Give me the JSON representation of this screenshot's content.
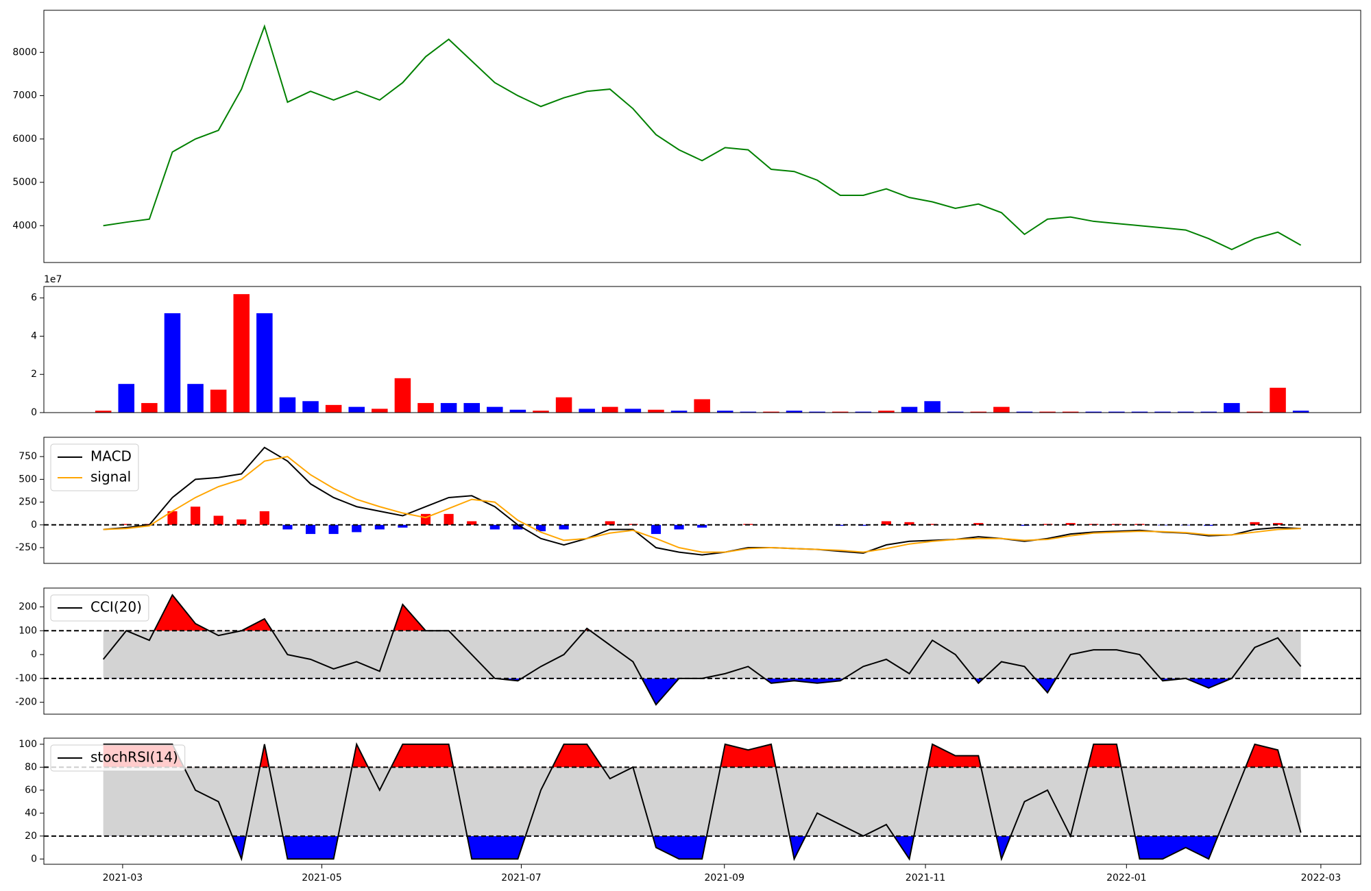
{
  "chart_data": [
    {
      "type": "line",
      "xlim": [
        -2.58,
        54.6
      ],
      "ylim": [
        3150,
        8970
      ],
      "yticks": [
        4000,
        5000,
        6000,
        7000,
        8000
      ],
      "series": [
        {
          "color": "green",
          "values": [
            4000,
            4080,
            4150,
            5700,
            6000,
            6200,
            7150,
            8600,
            6850,
            7100,
            6900,
            7100,
            6900,
            7300,
            7900,
            8300,
            7800,
            7300,
            7000,
            6750,
            6950,
            7100,
            7150,
            6700,
            6100,
            5750,
            5500,
            5800,
            5750,
            5300,
            5250,
            5050,
            4700,
            4700,
            4850,
            4650,
            4550,
            4400,
            4500,
            4300,
            3800,
            4150,
            4200,
            4100,
            4050,
            4000,
            3950,
            3900,
            3700,
            3450,
            3700,
            3850,
            3550
          ]
        }
      ]
    },
    {
      "type": "bar",
      "xlim": [
        -2.58,
        54.6
      ],
      "ylim": [
        0,
        66000000
      ],
      "offset_label": "1e7",
      "yticks": [
        {
          "value": 0,
          "label": "0"
        },
        {
          "value": 20000000,
          "label": "2"
        },
        {
          "value": 40000000,
          "label": "4"
        },
        {
          "value": 60000000,
          "label": "6"
        }
      ],
      "values": [
        1000000,
        15000000,
        5000000,
        52000000,
        15000000,
        12000000,
        62000000,
        52000000,
        8000000,
        6000000,
        4000000,
        3000000,
        2000000,
        18000000,
        5000000,
        5000000,
        5000000,
        3000000,
        1500000,
        1000000,
        8000000,
        2000000,
        3000000,
        2000000,
        1500000,
        1000000,
        7000000,
        1000000,
        500000,
        500000,
        1000000,
        500000,
        500000,
        500000,
        1000000,
        3000000,
        6000000,
        500000,
        500000,
        3000000,
        500000,
        500000,
        500000,
        500000,
        500000,
        500000,
        500000,
        500000,
        500000,
        5000000,
        500000,
        13000000,
        1000000
      ],
      "colors": [
        "red",
        "blue",
        "red",
        "blue",
        "blue",
        "red",
        "red",
        "blue",
        "blue",
        "blue",
        "red",
        "blue",
        "red",
        "red",
        "red",
        "blue",
        "blue",
        "blue",
        "blue",
        "red",
        "red",
        "blue",
        "red",
        "blue",
        "red",
        "blue",
        "red",
        "blue",
        "blue",
        "red",
        "blue",
        "blue",
        "red",
        "blue",
        "red",
        "blue",
        "blue",
        "blue",
        "red",
        "red",
        "blue",
        "red",
        "red",
        "blue",
        "blue",
        "blue",
        "blue",
        "blue",
        "blue",
        "blue",
        "red",
        "red",
        "blue"
      ]
    },
    {
      "type": "line",
      "xlim": [
        -2.58,
        54.6
      ],
      "ylim": [
        -423,
        962
      ],
      "yticks": [
        -250,
        0,
        250,
        500,
        750
      ],
      "hlines": [
        0
      ],
      "legend": "upper left",
      "series": [
        {
          "name": "MACD",
          "color": "black",
          "values": [
            -50,
            -30,
            0,
            300,
            500,
            520,
            560,
            850,
            700,
            450,
            300,
            200,
            150,
            100,
            200,
            300,
            320,
            200,
            0,
            -150,
            -220,
            -150,
            -50,
            -50,
            -250,
            -300,
            -330,
            -300,
            -250,
            -250,
            -260,
            -270,
            -290,
            -310,
            -220,
            -180,
            -170,
            -160,
            -130,
            -150,
            -180,
            -150,
            -100,
            -80,
            -70,
            -60,
            -80,
            -90,
            -120,
            -110,
            -50,
            -30,
            -40
          ]
        },
        {
          "name": "signal",
          "color": "orange",
          "values": [
            -50,
            -40,
            -10,
            150,
            300,
            420,
            500,
            700,
            750,
            550,
            400,
            280,
            200,
            130,
            80,
            180,
            280,
            250,
            50,
            -80,
            -170,
            -150,
            -90,
            -60,
            -150,
            -250,
            -300,
            -300,
            -260,
            -250,
            -260,
            -270,
            -280,
            -300,
            -260,
            -210,
            -180,
            -160,
            -150,
            -150,
            -170,
            -160,
            -120,
            -90,
            -80,
            -70,
            -75,
            -85,
            -110,
            -110,
            -80,
            -50,
            -40
          ]
        }
      ],
      "histogram": {
        "up_color": "red",
        "down_color": "blue",
        "values": [
          0,
          10,
          10,
          150,
          200,
          100,
          60,
          150,
          -50,
          -100,
          -100,
          -80,
          -50,
          -30,
          120,
          120,
          40,
          -50,
          -50,
          -70,
          -50,
          0,
          40,
          10,
          -100,
          -50,
          -30,
          0,
          10,
          0,
          0,
          0,
          -10,
          -10,
          40,
          30,
          10,
          0,
          20,
          0,
          -10,
          10,
          20,
          10,
          10,
          10,
          -5,
          -5,
          -10,
          0,
          30,
          20,
          0
        ]
      }
    },
    {
      "type": "line",
      "xlim": [
        -2.58,
        54.6
      ],
      "ylim": [
        -250,
        279
      ],
      "yticks": [
        -200,
        -100,
        0,
        100,
        200
      ],
      "hlines": [
        -100,
        100
      ],
      "legend": "upper left",
      "band_color": "lightgray",
      "above_color": "red",
      "below_color": "blue",
      "series": [
        {
          "name": "CCI(20)",
          "color": "black",
          "values": [
            -20,
            100,
            60,
            250,
            130,
            80,
            100,
            150,
            0,
            -20,
            -60,
            -30,
            -70,
            210,
            100,
            100,
            0,
            -100,
            -110,
            -50,
            0,
            110,
            40,
            -30,
            -210,
            -100,
            -100,
            -80,
            -50,
            -120,
            -110,
            -120,
            -110,
            -50,
            -20,
            -80,
            60,
            0,
            -120,
            -30,
            -50,
            -160,
            0,
            20,
            20,
            0,
            -110,
            -100,
            -140,
            -100,
            30,
            70,
            -50
          ]
        }
      ]
    },
    {
      "type": "line",
      "xlim": [
        -2.58,
        54.6
      ],
      "ylim": [
        -4.6,
        105.3
      ],
      "yticks": [
        0,
        20,
        40,
        60,
        80,
        100
      ],
      "hlines": [
        20,
        80
      ],
      "legend": "upper left",
      "band_color": "lightgray",
      "above_color": "red",
      "below_color": "blue",
      "xticks": [
        {
          "value": 0.84,
          "label": "2021-03"
        },
        {
          "value": 9.49,
          "label": "2021-05"
        },
        {
          "value": 18.15,
          "label": "2021-07"
        },
        {
          "value": 26.97,
          "label": "2021-09"
        },
        {
          "value": 35.7,
          "label": "2021-11"
        },
        {
          "value": 44.43,
          "label": "2022-01"
        },
        {
          "value": 52.87,
          "label": "2022-03"
        }
      ],
      "series": [
        {
          "name": "stochRSI(14)",
          "color": "black",
          "values": [
            100,
            100,
            100,
            100,
            60,
            50,
            0,
            100,
            0,
            0,
            0,
            100,
            60,
            100,
            100,
            100,
            0,
            0,
            0,
            60,
            100,
            100,
            70,
            80,
            10,
            0,
            0,
            100,
            95,
            100,
            0,
            40,
            30,
            20,
            30,
            0,
            100,
            90,
            90,
            0,
            50,
            60,
            20,
            100,
            100,
            0,
            0,
            10,
            0,
            50,
            100,
            95,
            23
          ]
        }
      ]
    }
  ]
}
